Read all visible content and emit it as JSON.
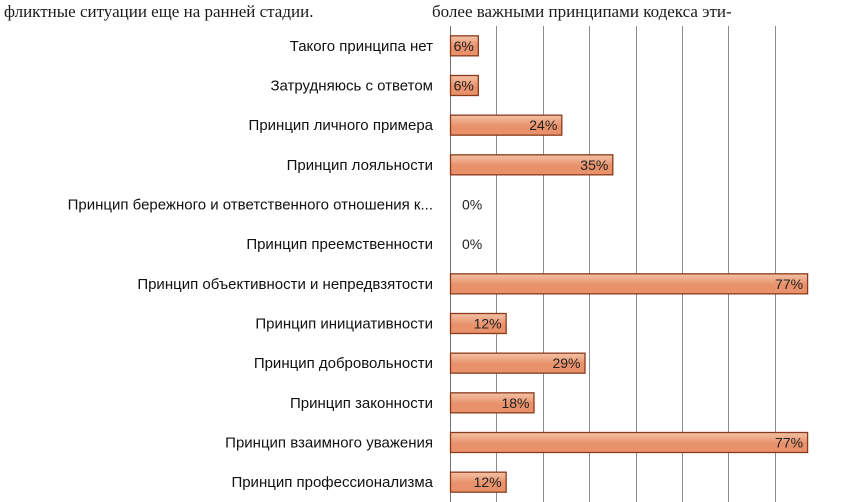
{
  "header": {
    "left_text": "фликтные ситуации еще на ранней стадии.",
    "right_text": "более важными принципами кодекса эти-"
  },
  "chart_data": {
    "type": "bar",
    "orientation": "horizontal",
    "categories": [
      "Такого принципа нет",
      "Затрудняюсь с ответом",
      "Принцип личного примера",
      "Принцип лояльности",
      "Принцип бережного и ответственного отношения к...",
      "Принцип преемственности",
      "Принцип объективности и непредвзятости",
      "Принцип инициативности",
      "Принцип добровольности",
      "Принцип законности",
      "Принцип взаимного уважения",
      "Принцип профессионализма"
    ],
    "values": [
      6,
      6,
      24,
      35,
      0,
      0,
      77,
      12,
      29,
      18,
      77,
      12
    ],
    "value_labels": [
      "6%",
      "6%",
      "24%",
      "35%",
      "0%",
      "0%",
      "77%",
      "12%",
      "29%",
      "18%",
      "77%",
      "12%"
    ],
    "xlim": [
      0,
      80
    ],
    "x_grid_step": 10,
    "grid": true,
    "legend": "none",
    "bar_color": "#e8916a",
    "bar_color_light": "#f3c2a6",
    "bar_border_color": "#8a3a1c"
  }
}
